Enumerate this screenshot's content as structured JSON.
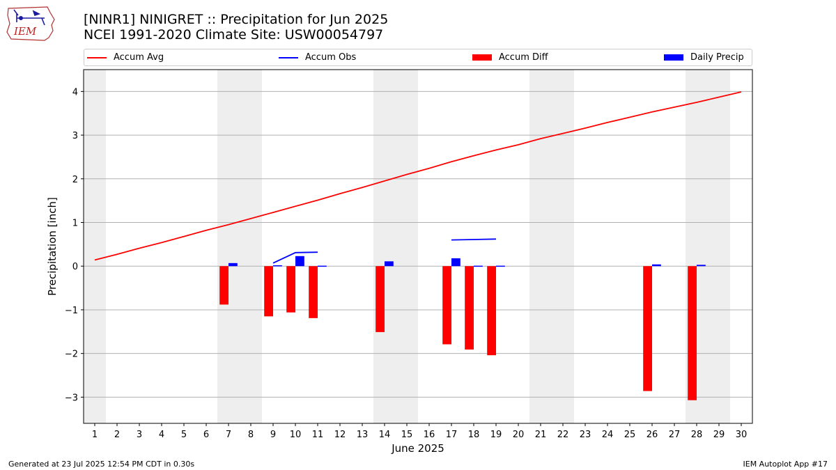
{
  "header": {
    "title_line1": "[NINR1] NINIGRET :: Precipitation for Jun 2025",
    "title_line2": "NCEI 1991-2020 Climate Site: USW00054797"
  },
  "logo": {
    "text": "IEM",
    "icon": "iem-iowa-logo"
  },
  "footer": {
    "left": "Generated at 23 Jul 2025 12:54 PM CDT in 0.30s",
    "right": "IEM Autoplot App #17"
  },
  "colors": {
    "accum_avg": "#ff0000",
    "accum_obs": "#0000ff",
    "accum_diff": "#ff0000",
    "daily_precip": "#0000ff",
    "weekend_shade": "#eeeeee",
    "grid": "#b0b0b0"
  },
  "chart_data": {
    "type": "bar",
    "xlabel": "June 2025",
    "ylabel": "Precipitation [inch]",
    "xlim": [
      0.5,
      30.5
    ],
    "ylim": [
      -3.6,
      4.5
    ],
    "yticks": [
      -3,
      -2,
      -1,
      0,
      1,
      2,
      3,
      4
    ],
    "ytick_labels": [
      "−3",
      "−2",
      "−1",
      "0",
      "1",
      "2",
      "3",
      "4"
    ],
    "xticks": [
      1,
      2,
      3,
      4,
      5,
      6,
      7,
      8,
      9,
      10,
      11,
      12,
      13,
      14,
      15,
      16,
      17,
      18,
      19,
      20,
      21,
      22,
      23,
      24,
      25,
      26,
      27,
      28,
      29,
      30
    ],
    "grid": "horizontal",
    "legend_position": "top",
    "weekend_days": [
      1,
      7,
      8,
      14,
      15,
      21,
      22,
      28,
      29
    ],
    "series": [
      {
        "name": "Accum Avg",
        "kind": "line",
        "x": [
          1,
          2,
          3,
          4,
          5,
          6,
          7,
          8,
          9,
          10,
          11,
          12,
          13,
          14,
          15,
          16,
          17,
          18,
          19,
          20,
          21,
          22,
          23,
          24,
          25,
          26,
          27,
          28,
          29,
          30
        ],
        "values": [
          0.14,
          0.27,
          0.41,
          0.54,
          0.68,
          0.82,
          0.95,
          1.09,
          1.23,
          1.37,
          1.51,
          1.66,
          1.8,
          1.95,
          2.1,
          2.24,
          2.39,
          2.53,
          2.66,
          2.78,
          2.92,
          3.04,
          3.16,
          3.29,
          3.41,
          3.53,
          3.64,
          3.75,
          3.87,
          3.99
        ]
      },
      {
        "name": "Accum Obs",
        "kind": "line",
        "x": [
          9,
          10,
          11,
          12,
          13,
          14,
          15,
          16,
          17,
          18,
          19,
          20,
          21,
          22,
          23,
          24,
          25,
          26,
          27,
          28,
          29,
          30
        ],
        "values": [
          0.07,
          0.31,
          0.32,
          null,
          null,
          null,
          null,
          null,
          0.6,
          0.61,
          0.62,
          null,
          null,
          null,
          null,
          null,
          null,
          null,
          null,
          null,
          null,
          null
        ]
      },
      {
        "name": "Accum Diff",
        "kind": "bar",
        "x": [
          7,
          9,
          10,
          11,
          14,
          17,
          18,
          19,
          26,
          28
        ],
        "values": [
          -0.88,
          -1.15,
          -1.06,
          -1.19,
          -1.51,
          -1.79,
          -1.91,
          -2.04,
          -2.86,
          -3.07
        ]
      },
      {
        "name": "Daily Precip",
        "kind": "bar",
        "x": [
          7,
          9,
          10,
          11,
          14,
          17,
          18,
          19,
          26,
          28
        ],
        "values": [
          0.07,
          0.02,
          0.23,
          0.01,
          0.11,
          0.18,
          0.01,
          0.01,
          0.04,
          0.03
        ]
      }
    ]
  }
}
